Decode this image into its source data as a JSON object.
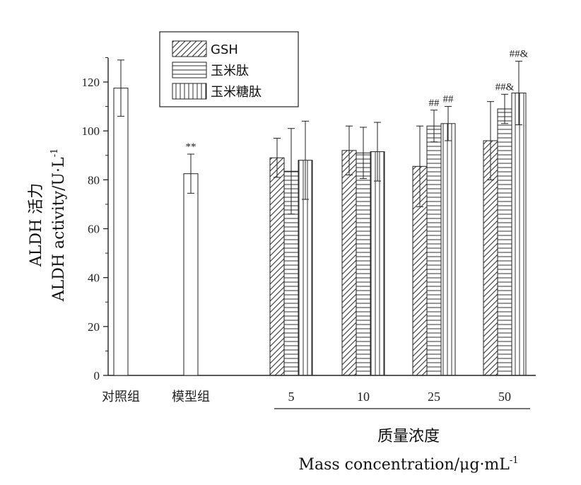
{
  "chart_data": {
    "type": "bar",
    "ylabel_line1": "ALDH 活力",
    "ylabel_line2": "ALDH activity/U·L",
    "ylabel_sup": "-1",
    "xlabel_line1": "质量浓度",
    "xlabel_line2": "Mass concentration/μg·mL",
    "xlabel_sup": "-1",
    "ylim": [
      0,
      130
    ],
    "yticks": [
      0,
      20,
      40,
      60,
      80,
      100,
      120
    ],
    "legend_position": "top-left",
    "legend": [
      {
        "label": "GSH",
        "pattern": "diagonal"
      },
      {
        "label": "玉米肽",
        "pattern": "horizontal"
      },
      {
        "label": "玉米糖肽",
        "pattern": "vertical"
      }
    ],
    "groups": [
      {
        "label": "对照组",
        "bars": [
          {
            "pattern": "blank",
            "value": 117.5,
            "err": 11.5,
            "ann": ""
          }
        ]
      },
      {
        "label": "模型组",
        "bars": [
          {
            "pattern": "blank",
            "value": 82.5,
            "err": 8,
            "ann": "**"
          }
        ]
      },
      {
        "label": "5",
        "bars": [
          {
            "pattern": "diagonal",
            "value": 89,
            "err": 8,
            "ann": ""
          },
          {
            "pattern": "horizontal",
            "value": 83.5,
            "err": 17.5,
            "ann": ""
          },
          {
            "pattern": "vertical",
            "value": 88,
            "err": 16,
            "ann": ""
          }
        ]
      },
      {
        "label": "10",
        "bars": [
          {
            "pattern": "diagonal",
            "value": 92,
            "err": 10,
            "ann": ""
          },
          {
            "pattern": "horizontal",
            "value": 91,
            "err": 10.5,
            "ann": ""
          },
          {
            "pattern": "vertical",
            "value": 91.5,
            "err": 12,
            "ann": ""
          }
        ]
      },
      {
        "label": "25",
        "bars": [
          {
            "pattern": "diagonal",
            "value": 85.5,
            "err": 16.5,
            "ann": ""
          },
          {
            "pattern": "horizontal",
            "value": 102,
            "err": 6.5,
            "ann": "##"
          },
          {
            "pattern": "vertical",
            "value": 103,
            "err": 7,
            "ann": "##"
          }
        ]
      },
      {
        "label": "50",
        "bars": [
          {
            "pattern": "diagonal",
            "value": 96,
            "err": 16,
            "ann": ""
          },
          {
            "pattern": "horizontal",
            "value": 109,
            "err": 6,
            "ann": "##&"
          },
          {
            "pattern": "vertical",
            "value": 115.5,
            "err": 13,
            "ann": "##&"
          }
        ]
      }
    ]
  }
}
